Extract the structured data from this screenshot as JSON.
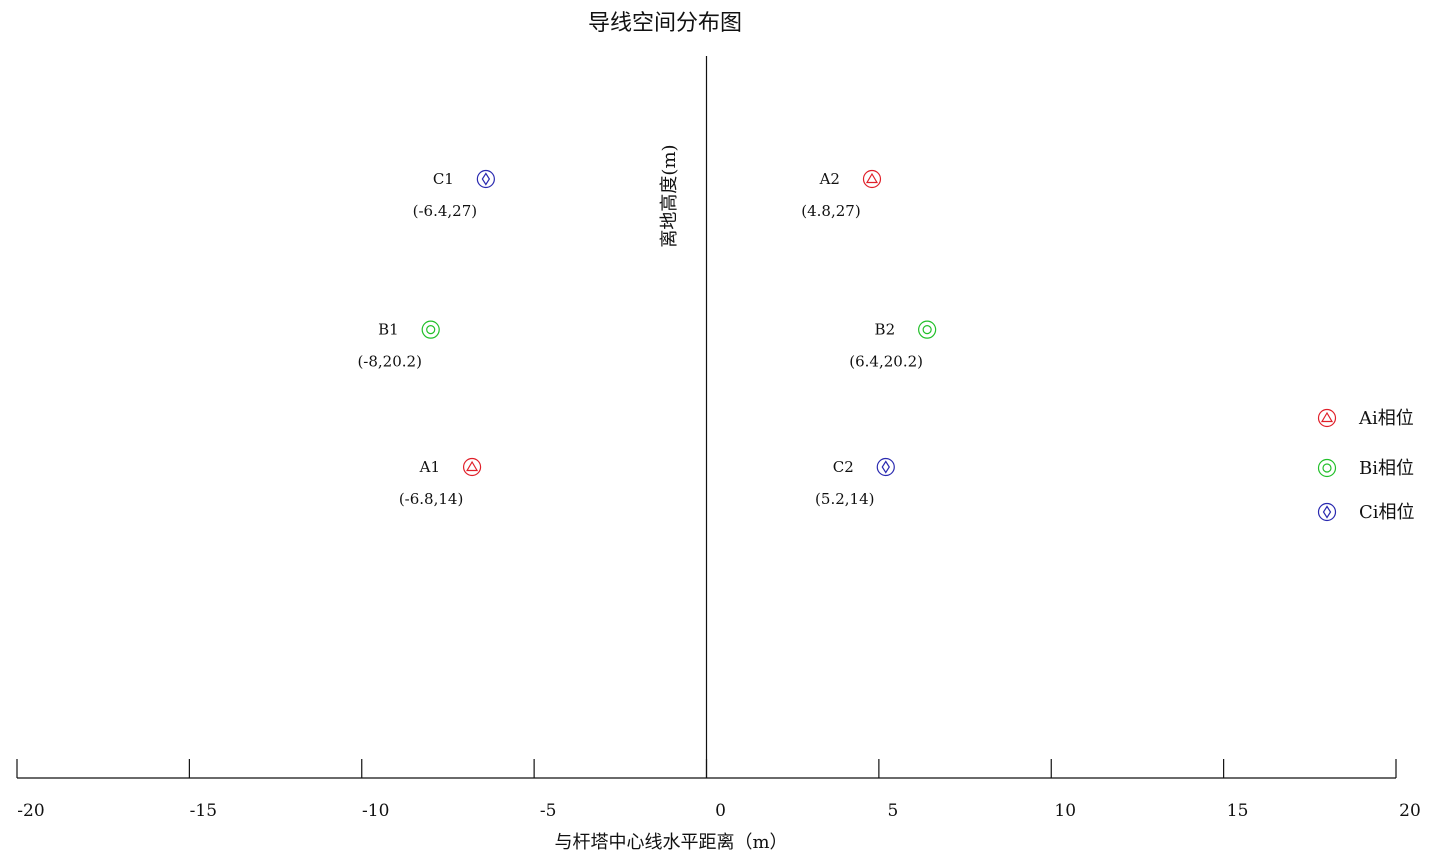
{
  "chart_data": {
    "type": "scatter",
    "title": "导线空间分布图",
    "xlabel": "与杆塔中心线水平距离（m）",
    "ylabel": "离地高度(m)",
    "xlim": [
      -20,
      20
    ],
    "ylim": [
      0,
      30
    ],
    "x_ticks": [
      -20,
      -15,
      -10,
      -5,
      0,
      5,
      10,
      15,
      20
    ],
    "x_tick_labels": [
      "-20",
      "-15",
      "-10",
      "-5",
      "0",
      "5",
      "10",
      "15",
      "20"
    ],
    "grid": false,
    "legend_position": "right",
    "series": [
      {
        "name": "Ai相位",
        "marker": "triangle",
        "color": "#e0202a",
        "points": [
          {
            "label": "A1",
            "coord_text": "(-6.8,14)",
            "x": -6.8,
            "y": 14
          },
          {
            "label": "A2",
            "coord_text": "(4.8,27)",
            "x": 4.8,
            "y": 27
          }
        ]
      },
      {
        "name": "Bi相位",
        "marker": "circle",
        "color": "#22c02a",
        "points": [
          {
            "label": "B1",
            "coord_text": "(-8,20.2)",
            "x": -8,
            "y": 20.2
          },
          {
            "label": "B2",
            "coord_text": "(6.4,20.2)",
            "x": 6.4,
            "y": 20.2
          }
        ]
      },
      {
        "name": "Ci相位",
        "marker": "diamond",
        "color": "#2a2ab0",
        "points": [
          {
            "label": "C1",
            "coord_text": "(-6.4,27)",
            "x": -6.4,
            "y": 27
          },
          {
            "label": "C2",
            "coord_text": "(5.2,14)",
            "x": 5.2,
            "y": 14
          }
        ]
      }
    ]
  }
}
